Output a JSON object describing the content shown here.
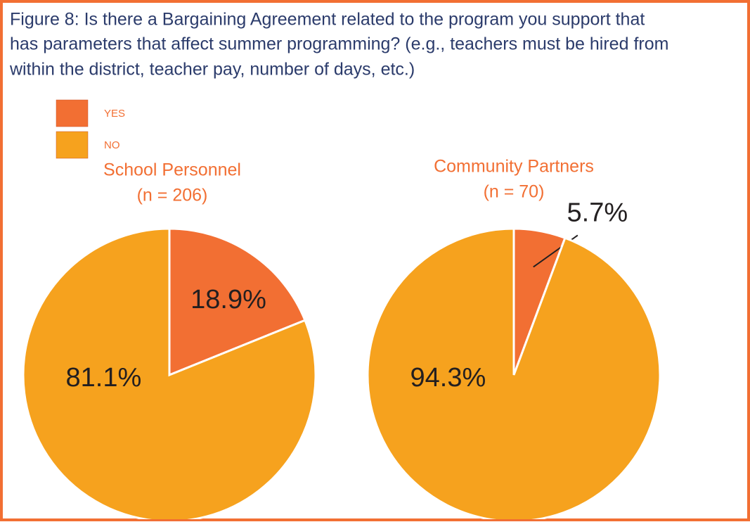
{
  "title": [
    "Figure 8: Is there a Bargaining Agreement related to the program you support that",
    "has parameters that affect summer programming? (e.g., teachers must be hired from",
    "within the district, teacher pay, number of days, etc.)"
  ],
  "chart_data": [
    {
      "type": "pie",
      "title": "School Personnel",
      "subtitle": "(n = 206)",
      "categories": [
        "YES",
        "NO"
      ],
      "values": [
        18.9,
        81.1
      ],
      "value_labels": [
        "18.9%",
        "81.1%"
      ],
      "colors": [
        "#f26f33",
        "#f6a21e"
      ]
    },
    {
      "type": "pie",
      "title": "Community Partners",
      "subtitle": "(n = 70)",
      "categories": [
        "YES",
        "NO"
      ],
      "values": [
        5.7,
        94.3
      ],
      "value_labels": [
        "5.7%",
        "94.3%"
      ],
      "colors": [
        "#f26f33",
        "#f6a21e"
      ]
    }
  ]
}
